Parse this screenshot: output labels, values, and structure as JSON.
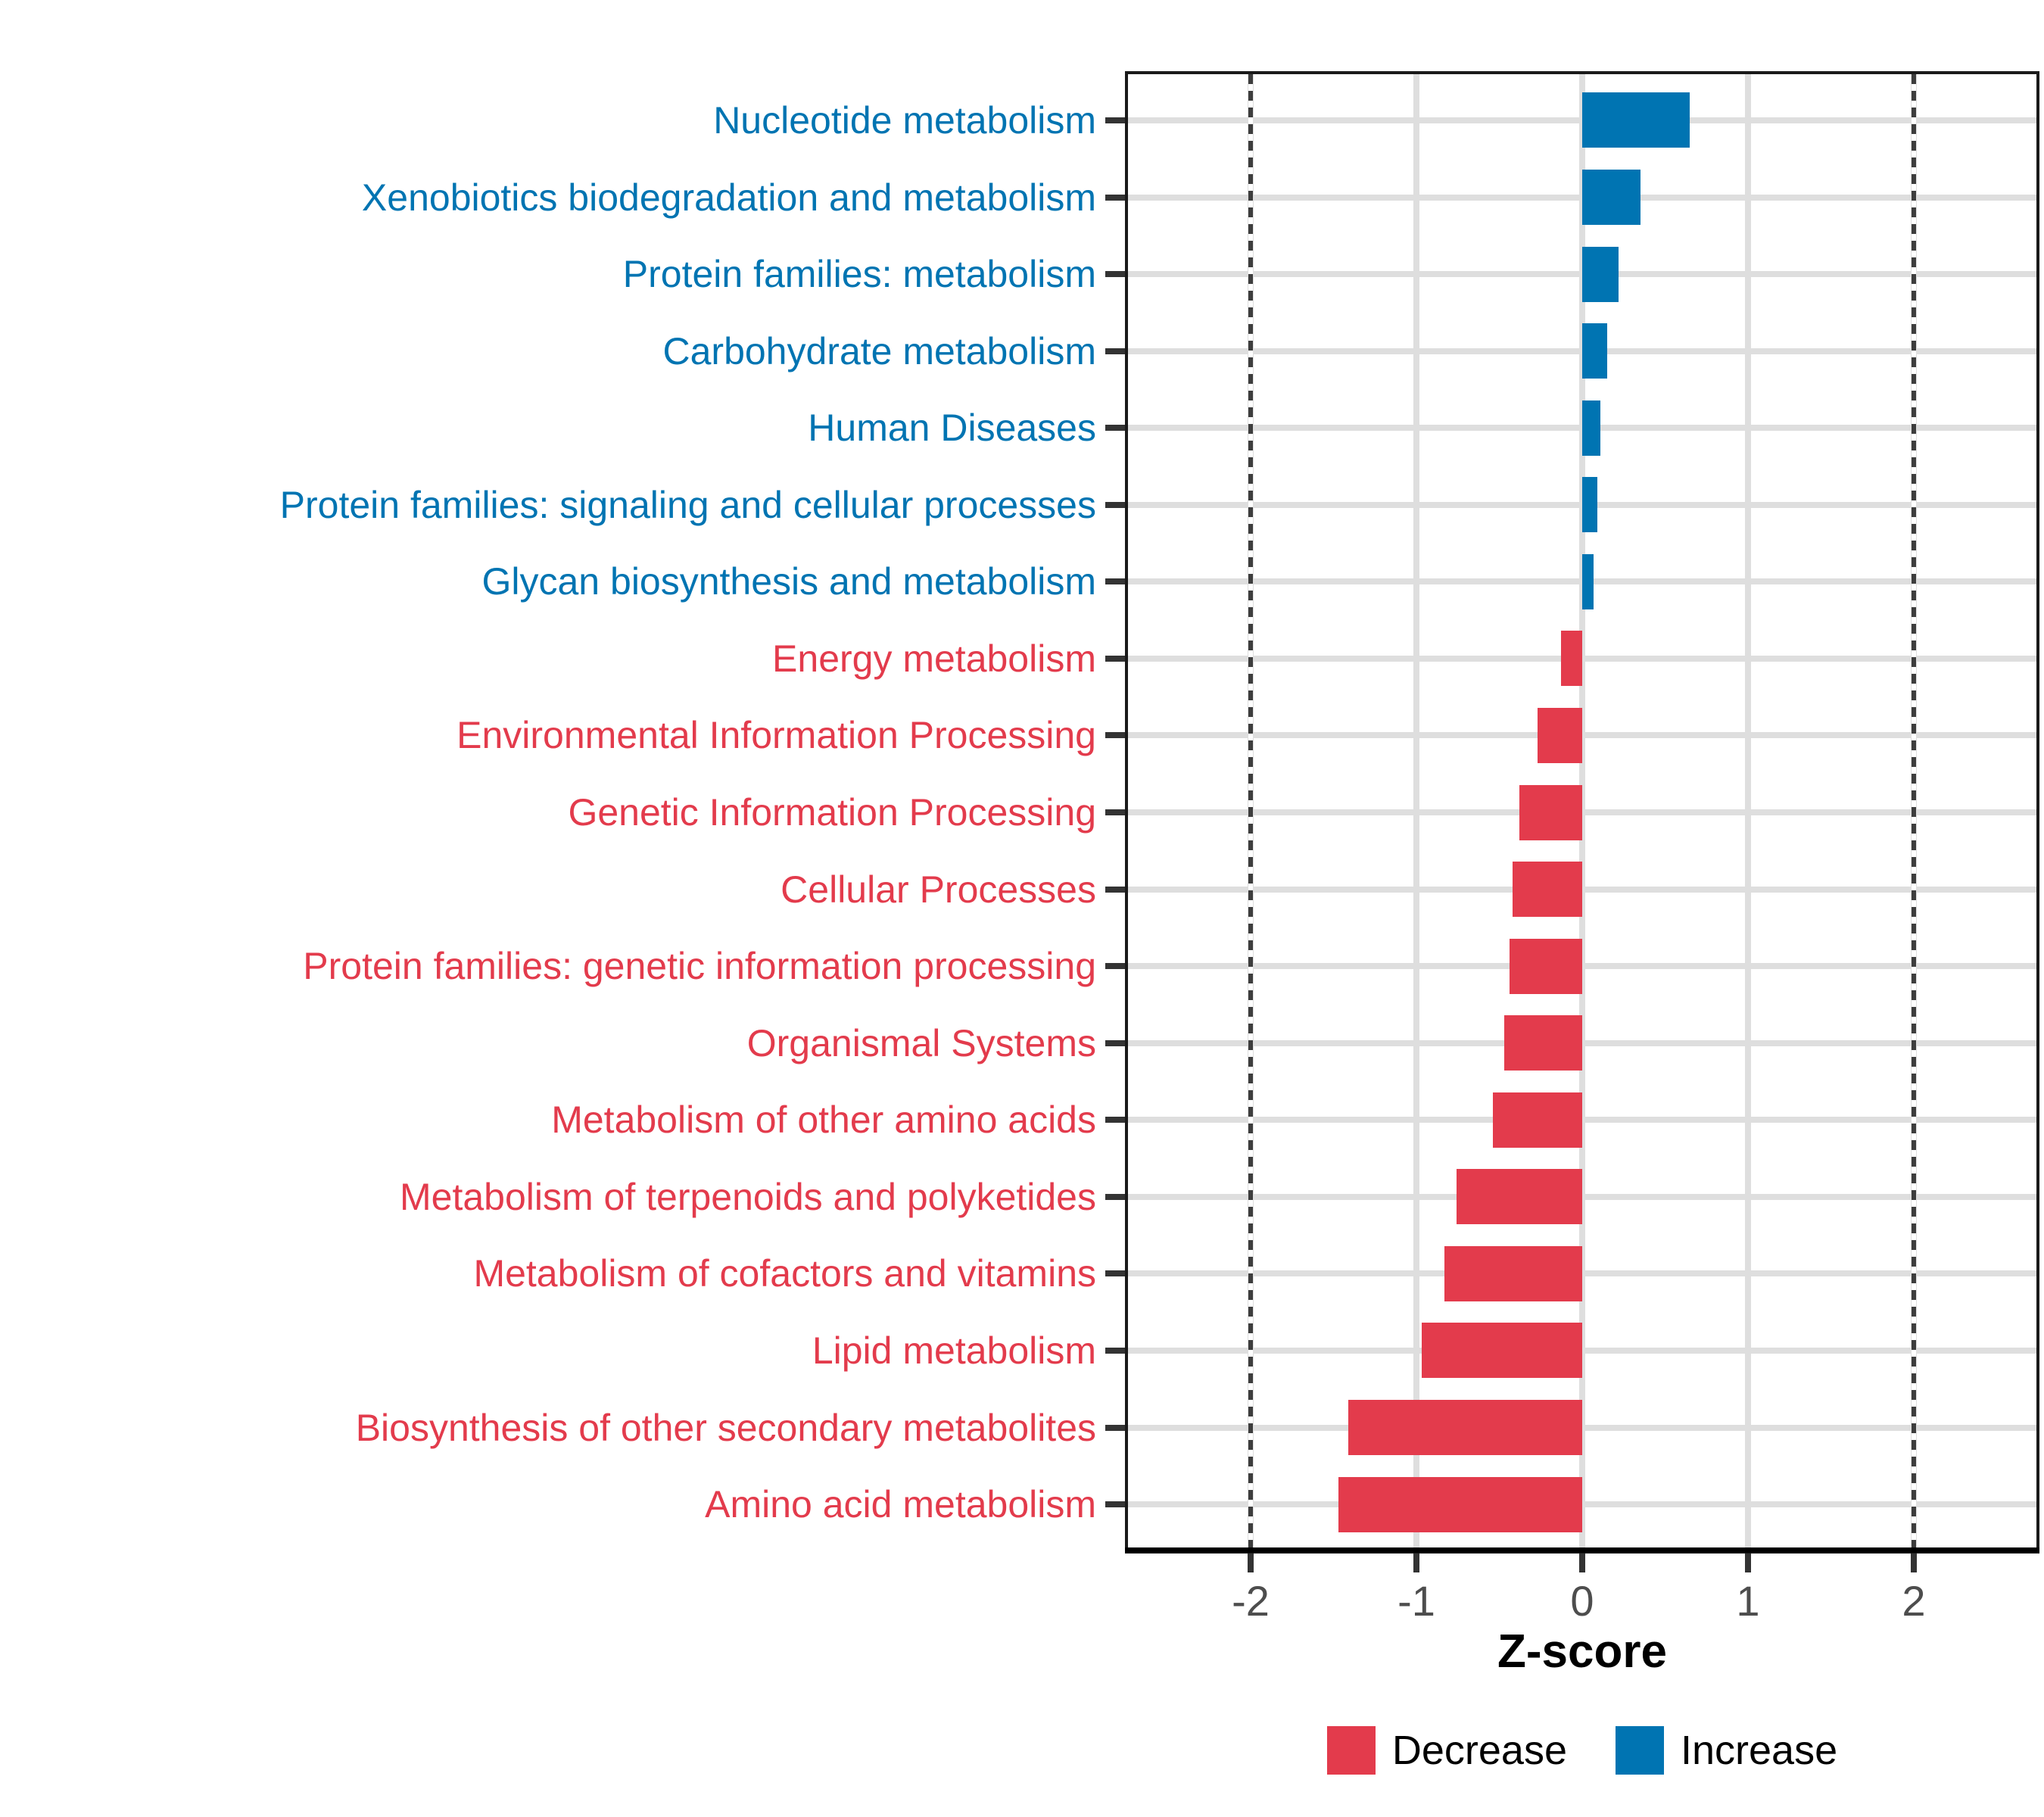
{
  "chart_data": {
    "type": "bar",
    "orientation": "horizontal",
    "title": "",
    "xlabel": "Z-score",
    "ylabel": "",
    "xlim": [
      -2.74,
      2.74
    ],
    "x_ticks": [
      -2,
      -1,
      0,
      1,
      2
    ],
    "x_tick_labels": [
      "-2",
      "-1",
      "0",
      "1",
      "2"
    ],
    "reference_lines_dashed": [
      -2,
      2
    ],
    "grid": "major gridlines on, light gray",
    "legend_position": "bottom",
    "series_colors": {
      "Increase": "#0074B2",
      "Decrease": "#E33B4C"
    },
    "bars": [
      {
        "category": "Nucleotide metabolism",
        "value": 0.65,
        "group": "Increase"
      },
      {
        "category": "Xenobiotics biodegradation and metabolism",
        "value": 0.35,
        "group": "Increase"
      },
      {
        "category": "Protein families: metabolism",
        "value": 0.22,
        "group": "Increase"
      },
      {
        "category": "Carbohydrate metabolism",
        "value": 0.15,
        "group": "Increase"
      },
      {
        "category": "Human Diseases",
        "value": 0.11,
        "group": "Increase"
      },
      {
        "category": "Protein families: signaling and cellular processes",
        "value": 0.09,
        "group": "Increase"
      },
      {
        "category": "Glycan biosynthesis and metabolism",
        "value": 0.07,
        "group": "Increase"
      },
      {
        "category": "Energy metabolism",
        "value": -0.13,
        "group": "Decrease"
      },
      {
        "category": "Environmental Information Processing",
        "value": -0.27,
        "group": "Decrease"
      },
      {
        "category": "Genetic Information Processing",
        "value": -0.38,
        "group": "Decrease"
      },
      {
        "category": "Cellular Processes",
        "value": -0.42,
        "group": "Decrease"
      },
      {
        "category": "Protein families: genetic information processing",
        "value": -0.44,
        "group": "Decrease"
      },
      {
        "category": "Organismal Systems",
        "value": -0.47,
        "group": "Decrease"
      },
      {
        "category": "Metabolism of other amino acids",
        "value": -0.54,
        "group": "Decrease"
      },
      {
        "category": "Metabolism of terpenoids and polyketides",
        "value": -0.76,
        "group": "Decrease"
      },
      {
        "category": "Metabolism of cofactors and vitamins",
        "value": -0.83,
        "group": "Decrease"
      },
      {
        "category": "Lipid metabolism",
        "value": -0.97,
        "group": "Decrease"
      },
      {
        "category": "Biosynthesis of other secondary metabolites",
        "value": -1.41,
        "group": "Decrease"
      },
      {
        "category": "Amino acid metabolism",
        "value": -1.47,
        "group": "Decrease"
      }
    ]
  },
  "axis": {
    "xlabel": "Z-score"
  },
  "legend": {
    "items": [
      {
        "label": "Decrease",
        "key": "Decrease"
      },
      {
        "label": "Increase",
        "key": "Increase"
      }
    ]
  }
}
